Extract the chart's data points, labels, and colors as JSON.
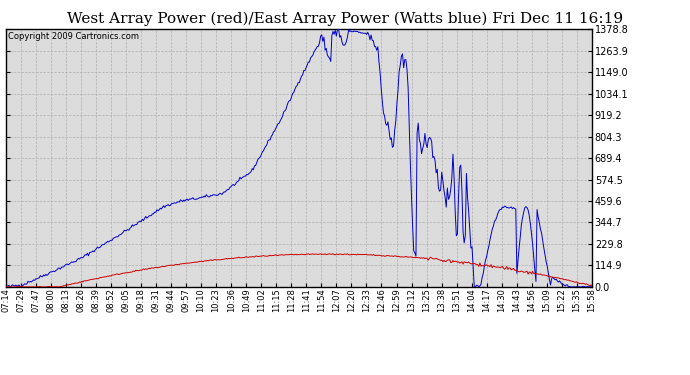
{
  "title": "West Array Power (red)/East Array Power (Watts blue) Fri Dec 11 16:19",
  "copyright": "Copyright 2009 Cartronics.com",
  "yticks": [
    0.0,
    114.9,
    229.8,
    344.7,
    459.6,
    574.5,
    689.4,
    804.3,
    919.2,
    1034.1,
    1149.0,
    1263.9,
    1378.8
  ],
  "ymax": 1378.8,
  "ymin": 0.0,
  "blue_color": "#0000cc",
  "red_color": "#cc0000",
  "bg_color": "#ffffff",
  "grid_color": "#b0b0b0",
  "plot_bg": "#dcdcdc",
  "title_fontsize": 11,
  "copyright_fontsize": 6,
  "xtick_labels": [
    "07:14",
    "07:29",
    "07:47",
    "08:00",
    "08:13",
    "08:26",
    "08:39",
    "08:52",
    "09:05",
    "09:18",
    "09:31",
    "09:44",
    "09:57",
    "10:10",
    "10:23",
    "10:36",
    "10:49",
    "11:02",
    "11:15",
    "11:28",
    "11:41",
    "11:54",
    "12:07",
    "12:20",
    "12:33",
    "12:46",
    "12:59",
    "13:12",
    "13:25",
    "13:38",
    "13:51",
    "14:04",
    "14:17",
    "14:30",
    "14:43",
    "14:56",
    "15:09",
    "15:22",
    "15:35",
    "15:58"
  ]
}
